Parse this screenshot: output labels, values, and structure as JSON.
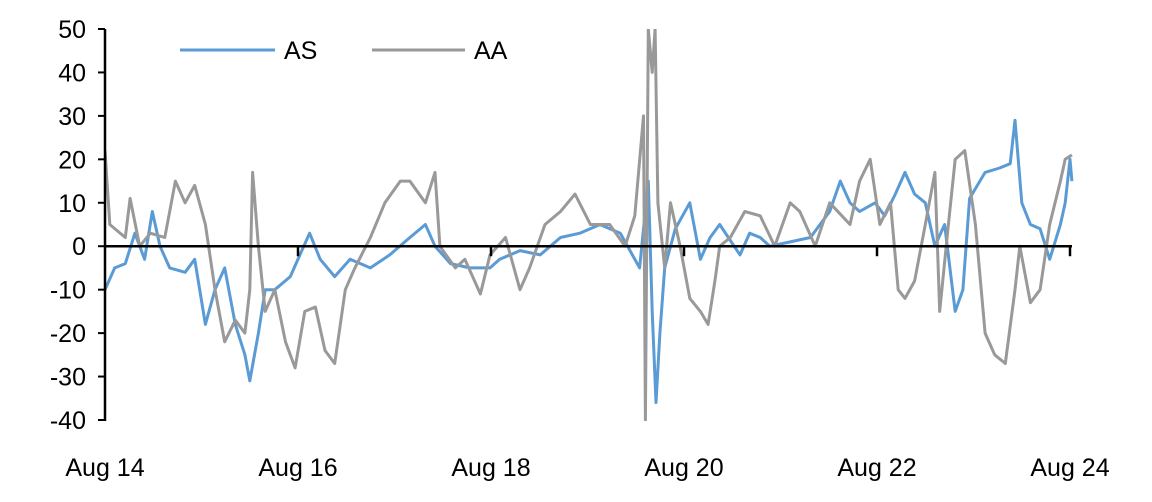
{
  "chart_data": {
    "type": "line",
    "title": "",
    "xlabel": "",
    "ylabel": "",
    "ylim": [
      -40,
      50
    ],
    "yticks": [
      "50",
      "40",
      "30",
      "20",
      "10",
      "0",
      "-10",
      "-20",
      "-30",
      "-40"
    ],
    "xlim": [
      2014.58,
      2024.6
    ],
    "xtick_labels": [
      {
        "x": 2014.58,
        "label": "Aug 14"
      },
      {
        "x": 2016.58,
        "label": "Aug 16"
      },
      {
        "x": 2018.58,
        "label": "Aug 18"
      },
      {
        "x": 2020.58,
        "label": "Aug 20"
      },
      {
        "x": 2022.58,
        "label": "Aug 22"
      },
      {
        "x": 2024.58,
        "label": "Aug 24"
      }
    ],
    "grid": false,
    "legend_placement": "top-left",
    "series": [
      {
        "name": "AS",
        "color": "#5B9BD5",
        "points": [
          [
            2014.58,
            -10
          ],
          [
            2014.68,
            -5
          ],
          [
            2014.79,
            -4
          ],
          [
            2014.89,
            3
          ],
          [
            2014.99,
            -3
          ],
          [
            2015.07,
            8
          ],
          [
            2015.15,
            0
          ],
          [
            2015.25,
            -5
          ],
          [
            2015.41,
            -6
          ],
          [
            2015.51,
            -3
          ],
          [
            2015.62,
            -18
          ],
          [
            2015.72,
            -10
          ],
          [
            2015.82,
            -5
          ],
          [
            2015.93,
            -18
          ],
          [
            2016.03,
            -25
          ],
          [
            2016.08,
            -31
          ],
          [
            2016.17,
            -20
          ],
          [
            2016.24,
            -10
          ],
          [
            2016.34,
            -10
          ],
          [
            2016.5,
            -7
          ],
          [
            2016.6,
            -2
          ],
          [
            2016.7,
            3
          ],
          [
            2016.81,
            -3
          ],
          [
            2016.96,
            -7
          ],
          [
            2017.12,
            -3
          ],
          [
            2017.33,
            -5
          ],
          [
            2017.53,
            -2
          ],
          [
            2017.74,
            2
          ],
          [
            2017.9,
            5
          ],
          [
            2018.0,
            0
          ],
          [
            2018.16,
            -4
          ],
          [
            2018.36,
            -5
          ],
          [
            2018.57,
            -5
          ],
          [
            2018.67,
            -3
          ],
          [
            2018.88,
            -1
          ],
          [
            2019.09,
            -2
          ],
          [
            2019.3,
            2
          ],
          [
            2019.5,
            3
          ],
          [
            2019.71,
            5
          ],
          [
            2019.92,
            3
          ],
          [
            2020.12,
            -5
          ],
          [
            2020.21,
            15
          ],
          [
            2020.25,
            -15
          ],
          [
            2020.29,
            -36
          ],
          [
            2020.33,
            -20
          ],
          [
            2020.38,
            -5
          ],
          [
            2020.49,
            4
          ],
          [
            2020.64,
            10
          ],
          [
            2020.75,
            -3
          ],
          [
            2020.85,
            2
          ],
          [
            2020.95,
            5
          ],
          [
            2021.16,
            -2
          ],
          [
            2021.26,
            3
          ],
          [
            2021.37,
            2
          ],
          [
            2021.47,
            0
          ],
          [
            2021.68,
            1
          ],
          [
            2021.89,
            2
          ],
          [
            2022.09,
            8
          ],
          [
            2022.2,
            15
          ],
          [
            2022.3,
            10
          ],
          [
            2022.4,
            8
          ],
          [
            2022.56,
            10
          ],
          [
            2022.66,
            7
          ],
          [
            2022.77,
            12
          ],
          [
            2022.87,
            17
          ],
          [
            2022.97,
            12
          ],
          [
            2023.08,
            10
          ],
          [
            2023.18,
            0
          ],
          [
            2023.28,
            5
          ],
          [
            2023.39,
            -15
          ],
          [
            2023.47,
            -10
          ],
          [
            2023.54,
            11
          ],
          [
            2023.7,
            17
          ],
          [
            2023.85,
            18
          ],
          [
            2023.96,
            19
          ],
          [
            2024.01,
            29
          ],
          [
            2024.08,
            10
          ],
          [
            2024.17,
            5
          ],
          [
            2024.27,
            4
          ],
          [
            2024.37,
            -3
          ],
          [
            2024.48,
            5
          ],
          [
            2024.53,
            10
          ],
          [
            2024.58,
            20
          ],
          [
            2024.6,
            15
          ]
        ]
      },
      {
        "name": "AA",
        "color": "#999999",
        "points": [
          [
            2014.58,
            22
          ],
          [
            2014.63,
            5
          ],
          [
            2014.79,
            2
          ],
          [
            2014.84,
            11
          ],
          [
            2014.94,
            0
          ],
          [
            2015.05,
            3
          ],
          [
            2015.2,
            2
          ],
          [
            2015.31,
            15
          ],
          [
            2015.41,
            10
          ],
          [
            2015.51,
            14
          ],
          [
            2015.62,
            5
          ],
          [
            2015.72,
            -10
          ],
          [
            2015.82,
            -22
          ],
          [
            2015.93,
            -17
          ],
          [
            2016.03,
            -20
          ],
          [
            2016.08,
            -10
          ],
          [
            2016.11,
            17
          ],
          [
            2016.17,
            0
          ],
          [
            2016.24,
            -15
          ],
          [
            2016.34,
            -10
          ],
          [
            2016.45,
            -22
          ],
          [
            2016.55,
            -28
          ],
          [
            2016.65,
            -15
          ],
          [
            2016.76,
            -14
          ],
          [
            2016.86,
            -24
          ],
          [
            2016.96,
            -27
          ],
          [
            2017.07,
            -10
          ],
          [
            2017.17,
            -5
          ],
          [
            2017.33,
            2
          ],
          [
            2017.48,
            10
          ],
          [
            2017.64,
            15
          ],
          [
            2017.74,
            15
          ],
          [
            2017.9,
            10
          ],
          [
            2018.0,
            17
          ],
          [
            2018.05,
            0
          ],
          [
            2018.21,
            -5
          ],
          [
            2018.31,
            -3
          ],
          [
            2018.47,
            -11
          ],
          [
            2018.57,
            -2
          ],
          [
            2018.73,
            2
          ],
          [
            2018.88,
            -10
          ],
          [
            2018.98,
            -5
          ],
          [
            2019.14,
            5
          ],
          [
            2019.3,
            8
          ],
          [
            2019.45,
            12
          ],
          [
            2019.61,
            5
          ],
          [
            2019.81,
            5
          ],
          [
            2019.97,
            0
          ],
          [
            2020.07,
            7
          ],
          [
            2020.16,
            30
          ],
          [
            2020.18,
            -40
          ],
          [
            2020.21,
            50
          ],
          [
            2020.25,
            40
          ],
          [
            2020.28,
            50
          ],
          [
            2020.31,
            10
          ],
          [
            2020.38,
            -5
          ],
          [
            2020.44,
            10
          ],
          [
            2020.54,
            0
          ],
          [
            2020.64,
            -12
          ],
          [
            2020.75,
            -15
          ],
          [
            2020.83,
            -18
          ],
          [
            2020.9,
            -8
          ],
          [
            2020.95,
            0
          ],
          [
            2021.06,
            2
          ],
          [
            2021.21,
            8
          ],
          [
            2021.37,
            7
          ],
          [
            2021.52,
            0
          ],
          [
            2021.68,
            10
          ],
          [
            2021.78,
            8
          ],
          [
            2021.94,
            0
          ],
          [
            2022.09,
            10
          ],
          [
            2022.3,
            5
          ],
          [
            2022.4,
            15
          ],
          [
            2022.51,
            20
          ],
          [
            2022.61,
            5
          ],
          [
            2022.72,
            10
          ],
          [
            2022.8,
            -10
          ],
          [
            2022.87,
            -12
          ],
          [
            2022.97,
            -8
          ],
          [
            2023.08,
            5
          ],
          [
            2023.18,
            17
          ],
          [
            2023.23,
            -15
          ],
          [
            2023.32,
            5
          ],
          [
            2023.39,
            20
          ],
          [
            2023.49,
            22
          ],
          [
            2023.6,
            5
          ],
          [
            2023.7,
            -20
          ],
          [
            2023.8,
            -25
          ],
          [
            2023.91,
            -27
          ],
          [
            2024.01,
            -10
          ],
          [
            2024.06,
            0
          ],
          [
            2024.17,
            -13
          ],
          [
            2024.27,
            -10
          ],
          [
            2024.37,
            5
          ],
          [
            2024.48,
            15
          ],
          [
            2024.53,
            20
          ],
          [
            2024.6,
            21
          ]
        ]
      }
    ]
  }
}
